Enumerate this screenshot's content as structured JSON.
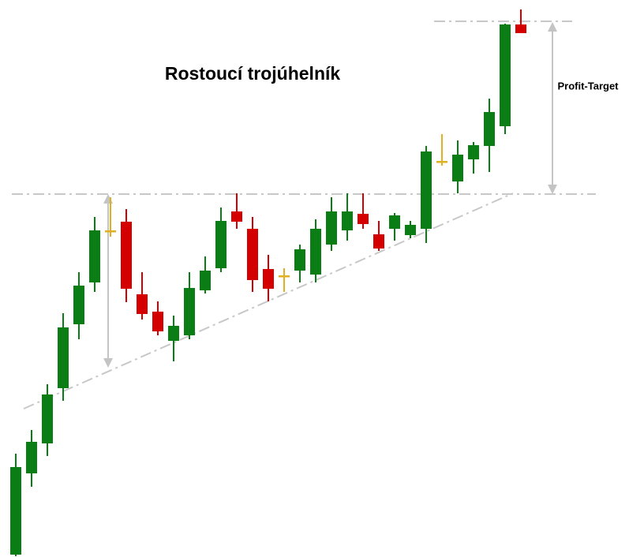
{
  "chart_data": {
    "type": "candlestick",
    "title": "Rostoucí trojúhelník",
    "annotations": [
      "Profit-Target"
    ],
    "open": [
      3,
      106,
      144,
      214,
      295,
      348,
      412,
      425,
      333,
      311,
      274,
      281,
      338,
      366,
      438,
      416,
      365,
      355,
      363,
      358,
      396,
      414,
      435,
      409,
      416,
      408,
      416,
      500,
      476,
      504,
      521,
      546,
      675
    ],
    "high": [
      131,
      161,
      219,
      309,
      361,
      431,
      456,
      441,
      361,
      324,
      306,
      361,
      381,
      443,
      461,
      431,
      383,
      366,
      396,
      428,
      456,
      461,
      461,
      426,
      436,
      426,
      521,
      536,
      528,
      526,
      581,
      676,
      694
    ],
    "low": [
      1,
      89,
      128,
      198,
      276,
      336,
      406,
      323,
      301,
      281,
      248,
      276,
      334,
      361,
      416,
      336,
      324,
      336,
      348,
      348,
      388,
      401,
      416,
      388,
      401,
      404,
      398,
      496,
      461,
      486,
      488,
      536,
      664
    ],
    "close": [
      114,
      146,
      206,
      291,
      344,
      414,
      414,
      340,
      308,
      286,
      293,
      341,
      363,
      426,
      425,
      351,
      340,
      357,
      390,
      416,
      438,
      438,
      422,
      391,
      433,
      421,
      514,
      502,
      510,
      522,
      564,
      675,
      664
    ],
    "colors": [
      "#0a7d14",
      "#0a7d14",
      "#0a7d14",
      "#0a7d14",
      "#0a7d14",
      "#0a7d14",
      "#e0b020",
      "#d40000",
      "#d40000",
      "#d40000",
      "#0a7d14",
      "#0a7d14",
      "#0a7d14",
      "#0a7d14",
      "#d40000",
      "#d40000",
      "#d40000",
      "#e0b020",
      "#0a7d14",
      "#0a7d14",
      "#0a7d14",
      "#0a7d14",
      "#d40000",
      "#d40000",
      "#0a7d14",
      "#0a7d14",
      "#0a7d14",
      "#e0b020",
      "#0a7d14",
      "#0a7d14",
      "#0a7d14",
      "#0a7d14",
      "#d40000"
    ],
    "ylim": [
      0,
      706
    ]
  }
}
